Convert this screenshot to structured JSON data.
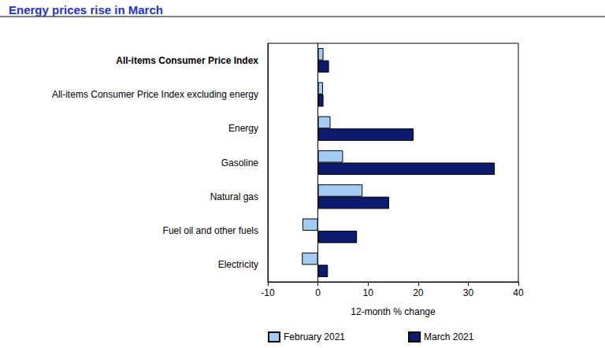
{
  "chart_data": {
    "type": "bar",
    "title": "Energy prices rise in March",
    "orientation": "horizontal",
    "categories": [
      "All-items Consumer Price Index",
      "All-items Consumer Price Index excluding energy",
      "Energy",
      "Gasoline",
      "Natural gas",
      "Fuel oil and other fuels",
      "Electricity"
    ],
    "series": [
      {
        "name": "February 2021",
        "color": "#a3cbf3",
        "values": [
          1.1,
          1.0,
          2.5,
          5.0,
          8.9,
          -3.1,
          -3.2
        ]
      },
      {
        "name": "March 2021",
        "color": "#0d1b6e",
        "values": [
          2.2,
          1.1,
          19.1,
          35.3,
          14.2,
          7.8,
          2.0
        ]
      }
    ],
    "xlabel": "12-month % change",
    "xlim": [
      -10,
      40
    ],
    "xticks": [
      -10,
      0,
      10,
      20,
      30,
      40
    ],
    "grid": false,
    "legend": "bottom"
  }
}
